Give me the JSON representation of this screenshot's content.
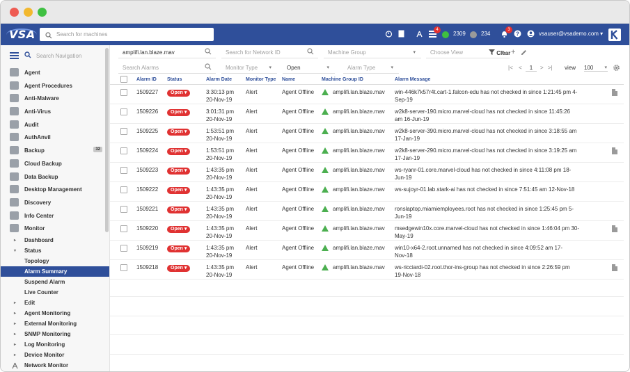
{
  "appbar": {
    "logo": "VSA",
    "search_placeholder": "Search for machines",
    "alerts_badge": "4",
    "green_count": "2309",
    "gray_count": "234",
    "notif_badge": "3",
    "user": "vsauser@vsademo.com",
    "colors": {
      "bar": "#2f4f9a",
      "green": "#3fbf3f",
      "gray": "#9a9a9a"
    }
  },
  "sidebar": {
    "search_placeholder": "Search Navigation",
    "items": [
      {
        "label": "Agent",
        "icon": "agent-icon"
      },
      {
        "label": "Agent Procedures",
        "icon": "procedures-icon"
      },
      {
        "label": "Anti-Malware",
        "icon": "anti-malware-icon"
      },
      {
        "label": "Anti-Virus",
        "icon": "anti-virus-icon"
      },
      {
        "label": "Audit",
        "icon": "audit-icon"
      },
      {
        "label": "AuthAnvil",
        "icon": "authanvil-icon"
      },
      {
        "label": "Backup",
        "icon": "backup-icon",
        "count": "32"
      },
      {
        "label": "Cloud Backup",
        "icon": "cloud-icon"
      },
      {
        "label": "Data Backup",
        "icon": "data-backup-icon"
      },
      {
        "label": "Desktop Management",
        "icon": "desktop-icon"
      },
      {
        "label": "Discovery",
        "icon": "discovery-icon"
      },
      {
        "label": "Info Center",
        "icon": "info-icon"
      },
      {
        "label": "Monitor",
        "icon": "monitor-icon"
      }
    ],
    "subitems": [
      {
        "label": "Dashboard",
        "level": 1,
        "arrow": "▸"
      },
      {
        "label": "Status",
        "level": 1,
        "arrow": "▾"
      },
      {
        "label": "Topology",
        "level": 2
      },
      {
        "label": "Alarm Summary",
        "level": 2,
        "active": true
      },
      {
        "label": "Suspend Alarm",
        "level": 2
      },
      {
        "label": "Live Counter",
        "level": 2
      },
      {
        "label": "Edit",
        "level": 1,
        "arrow": "▸"
      },
      {
        "label": "Agent Monitoring",
        "level": 1,
        "arrow": "▸"
      },
      {
        "label": "External Monitoring",
        "level": 1,
        "arrow": "▸"
      },
      {
        "label": "SNMP Monitoring",
        "level": 1,
        "arrow": "▸"
      },
      {
        "label": "Log Monitoring",
        "level": 1,
        "arrow": "▸"
      },
      {
        "label": "Device Monitor",
        "level": 1,
        "arrow": "▸"
      },
      {
        "label": "Network Monitor",
        "level": 1
      }
    ]
  },
  "filters": {
    "machine_value": "amplifi.lan.blaze.mav",
    "network_placeholder": "Search for Network ID",
    "machine_group_placeholder": "Machine Group",
    "view_placeholder": "Choose View",
    "clear_label": "Clear",
    "alarms_placeholder": "Search Alarms",
    "monitor_type_placeholder": "Monitor Type",
    "state_value": "Open",
    "alarm_type_placeholder": "Alarm Type",
    "page": "1",
    "view_label": "view",
    "page_size": "100"
  },
  "table": {
    "headers": [
      "Alarm ID",
      "Status",
      "Alarm Date",
      "Monitor Type",
      "Name",
      "Machine Group ID",
      "Alarm Message"
    ],
    "rows": [
      {
        "id": "1509227",
        "status": "Open",
        "time": "3:30:13 pm",
        "date": "20-Nov-19",
        "type": "Alert",
        "name": "Agent Offline",
        "group": "amplifi.lan.blaze.mav",
        "msg1": "win-446k7k57r4t.cart-1.falcon-edu has not checked in since 1:21:45 pm 4-",
        "msg2": "Sep-19",
        "note": true
      },
      {
        "id": "1509226",
        "status": "Open",
        "time": "3:01:31 pm",
        "date": "20-Nov-19",
        "type": "Alert",
        "name": "Agent Offline",
        "group": "amplifi.lan.blaze.mav",
        "msg1": "w2k8-server-190.micro.marvel-cloud has not checked in since 11:45:26",
        "msg2": "am 16-Jun-19",
        "note": false
      },
      {
        "id": "1509225",
        "status": "Open",
        "time": "1:53:51 pm",
        "date": "20-Nov-19",
        "type": "Alert",
        "name": "Agent Offline",
        "group": "amplifi.lan.blaze.mav",
        "msg1": "w2k8-server-390.micro.marvel-cloud has not checked in since 3:18:55 am",
        "msg2": "17-Jan-19",
        "note": false
      },
      {
        "id": "1509224",
        "status": "Open",
        "time": "1:53:51 pm",
        "date": "20-Nov-19",
        "type": "Alert",
        "name": "Agent Offline",
        "group": "amplifi.lan.blaze.mav",
        "msg1": "w2k8-server-290.micro.marvel-cloud has not checked in since 3:19:25 am",
        "msg2": "17-Jan-19",
        "note": true
      },
      {
        "id": "1509223",
        "status": "Open",
        "time": "1:43:35 pm",
        "date": "20-Nov-19",
        "type": "Alert",
        "name": "Agent Offline",
        "group": "amplifi.lan.blaze.mav",
        "msg1": "ws-ryanr-01.core.marvel-cloud has not checked in since 4:11:08 pm 18-",
        "msg2": "Jun-19",
        "note": false
      },
      {
        "id": "1509222",
        "status": "Open",
        "time": "1:43:35 pm",
        "date": "20-Nov-19",
        "type": "Alert",
        "name": "Agent Offline",
        "group": "amplifi.lan.blaze.mav",
        "msg1": "ws-sujoyr-01.lab.stark-ai has not checked in since 7:51:45 am 12-Nov-18",
        "msg2": "",
        "note": false
      },
      {
        "id": "1509221",
        "status": "Open",
        "time": "1:43:35 pm",
        "date": "20-Nov-19",
        "type": "Alert",
        "name": "Agent Offline",
        "group": "amplifi.lan.blaze.mav",
        "msg1": "ronslaptop.miamiemployees.root has not checked in since 1:25:45 pm 5-",
        "msg2": "Jun-19",
        "note": false
      },
      {
        "id": "1509220",
        "status": "Open",
        "time": "1:43:35 pm",
        "date": "20-Nov-19",
        "type": "Alert",
        "name": "Agent Offline",
        "group": "amplifi.lan.blaze.mav",
        "msg1": "msedgewin10x.core.marvel-cloud has not checked in since 1:46:04 pm 30-",
        "msg2": "May-19",
        "note": true
      },
      {
        "id": "1509219",
        "status": "Open",
        "time": "1:43:35 pm",
        "date": "20-Nov-19",
        "type": "Alert",
        "name": "Agent Offline",
        "group": "amplifi.lan.blaze.mav",
        "msg1": "win10-x64-2.root.unnamed has not checked in since 4:09:52 am 17-",
        "msg2": "Nov-18",
        "note": false
      },
      {
        "id": "1509218",
        "status": "Open",
        "time": "1:43:35 pm",
        "date": "20-Nov-19",
        "type": "Alert",
        "name": "Agent Offline",
        "group": "amplifi.lan.blaze.mav",
        "msg1": "ws-ricciardi-02.root.thor-ins-group has not checked in since 2:26:59 pm",
        "msg2": "19-Nov-18",
        "note": true
      }
    ]
  }
}
